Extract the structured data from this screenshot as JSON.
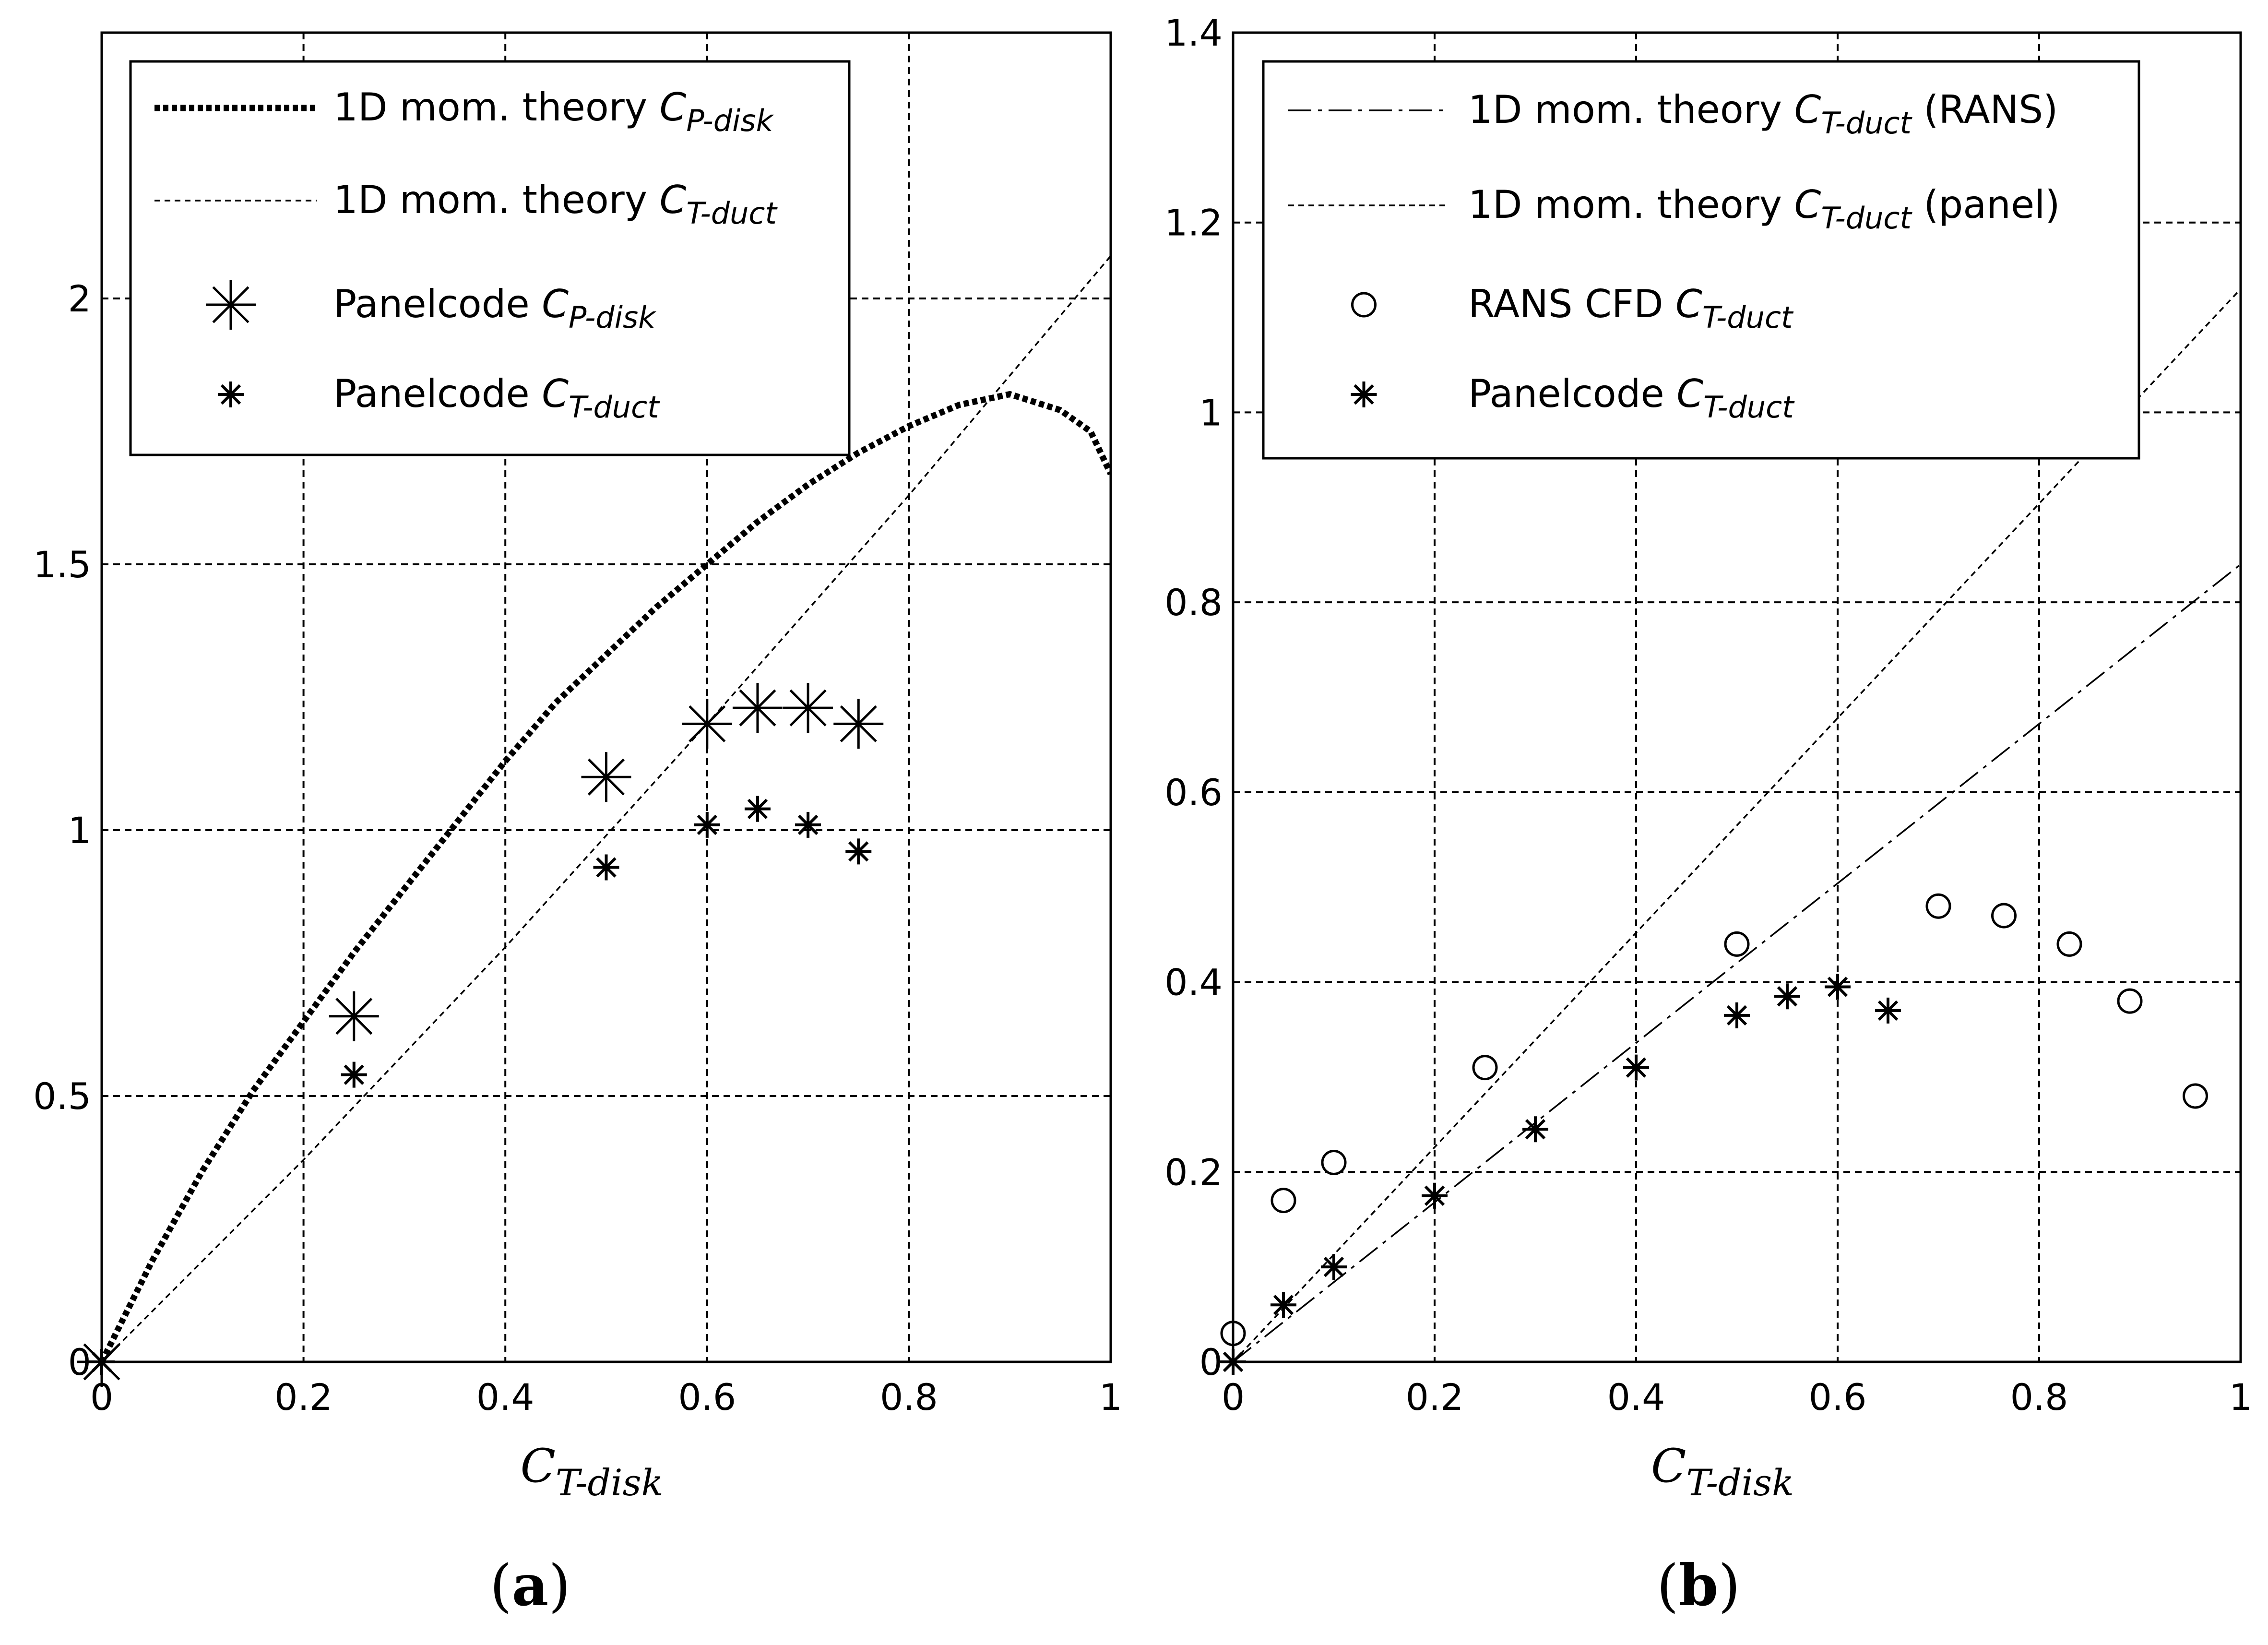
{
  "figure": {
    "panel_a_label": {
      "open": "(",
      "letter": "a",
      "close": ")"
    },
    "panel_b_label": {
      "open": "(",
      "letter": "b",
      "close": ")"
    }
  },
  "chart_data": [
    {
      "type": "line",
      "panel": "a",
      "xlabel": {
        "main": "C",
        "sub": "T-disk"
      },
      "xlim": [
        0,
        1
      ],
      "ylim": [
        0,
        2.5
      ],
      "xticks": [
        0,
        0.2,
        0.4,
        0.6,
        0.8,
        1
      ],
      "xtick_labels": [
        "0",
        "0.2",
        "0.4",
        "0.6",
        "0.8",
        "1"
      ],
      "yticks": [
        0,
        0.5,
        1,
        1.5,
        2
      ],
      "ytick_labels": [
        "0",
        "0.5",
        "1",
        "1.5",
        "2"
      ],
      "grid": true,
      "legend_position": "top-left",
      "series": [
        {
          "name": "1D mom. theory C_P-disk",
          "legend_prefix": "1D mom. theory ",
          "legend_main": "C",
          "legend_sub": "P-disk",
          "style": "thick-dotted",
          "x": [
            0,
            0.05,
            0.1,
            0.15,
            0.2,
            0.25,
            0.3,
            0.35,
            0.4,
            0.45,
            0.5,
            0.55,
            0.6,
            0.65,
            0.7,
            0.75,
            0.8,
            0.85,
            0.9,
            0.95,
            0.98,
            1.0
          ],
          "values": [
            0,
            0.19,
            0.36,
            0.51,
            0.64,
            0.77,
            0.89,
            1.01,
            1.13,
            1.24,
            1.33,
            1.42,
            1.5,
            1.58,
            1.65,
            1.71,
            1.76,
            1.8,
            1.82,
            1.79,
            1.75,
            1.67
          ]
        },
        {
          "name": "1D mom. theory C_T-duct",
          "legend_prefix": "1D mom. theory  ",
          "legend_main": "C",
          "legend_sub": "T-duct",
          "style": "thin-dashed",
          "x": [
            0,
            0.2,
            0.4,
            0.6,
            0.8,
            1.0
          ],
          "values": [
            0,
            0.38,
            0.78,
            1.2,
            1.63,
            2.08
          ]
        },
        {
          "name": "Panelcode C_P-disk",
          "legend_prefix": "Panelcode ",
          "legend_main": "C",
          "legend_sub": "P-disk",
          "style": "marker-asterisk-large",
          "x": [
            0,
            0.25,
            0.5,
            0.6,
            0.65,
            0.7,
            0.75
          ],
          "values": [
            0,
            0.65,
            1.1,
            1.2,
            1.23,
            1.23,
            1.2
          ]
        },
        {
          "name": "Panelcode C_T-duct",
          "legend_prefix": "Panelcode ",
          "legend_main": "C",
          "legend_sub": "T-duct",
          "style": "marker-asterisk-small",
          "x": [
            0,
            0.25,
            0.5,
            0.6,
            0.65,
            0.7,
            0.75
          ],
          "values": [
            0,
            0.54,
            0.93,
            1.01,
            1.04,
            1.01,
            0.96
          ]
        }
      ]
    },
    {
      "type": "line",
      "panel": "b",
      "xlabel": {
        "main": "C",
        "sub": "T-disk"
      },
      "xlim": [
        0,
        1
      ],
      "ylim": [
        0,
        1.4
      ],
      "xticks": [
        0,
        0.2,
        0.4,
        0.6,
        0.8,
        1
      ],
      "xtick_labels": [
        "0",
        "0.2",
        "0.4",
        "0.6",
        "0.8",
        "1"
      ],
      "yticks": [
        0,
        0.2,
        0.4,
        0.6,
        0.8,
        1,
        1.2,
        1.4
      ],
      "ytick_labels": [
        "0",
        "0.2",
        "0.4",
        "0.6",
        "0.8",
        "1",
        "1.2",
        "1.4"
      ],
      "grid": true,
      "legend_position": "top",
      "series": [
        {
          "name": "1D mom. theory C_T-duct (RANS)",
          "legend_prefix": "1D mom. theory ",
          "legend_main": "C",
          "legend_sub": "T-duct",
          "legend_suffix": " (RANS)",
          "style": "dash-dot",
          "x": [
            0,
            1.0
          ],
          "values": [
            0,
            0.84
          ]
        },
        {
          "name": "1D mom. theory C_T-duct (panel)",
          "legend_prefix": "1D mom. theory ",
          "legend_main": "C",
          "legend_sub": "T-duct",
          "legend_suffix": " (panel)",
          "style": "thin-dashed",
          "x": [
            0,
            1.0
          ],
          "values": [
            0,
            1.13
          ]
        },
        {
          "name": "RANS CFD C_T-duct",
          "legend_prefix": "RANS CFD ",
          "legend_main": "C",
          "legend_sub": "T-duct",
          "style": "marker-circle",
          "x": [
            0,
            0.05,
            0.1,
            0.25,
            0.5,
            0.7,
            0.765,
            0.83,
            0.89,
            0.955
          ],
          "values": [
            0.03,
            0.17,
            0.21,
            0.31,
            0.44,
            0.48,
            0.47,
            0.44,
            0.38,
            0.28
          ]
        },
        {
          "name": "Panelcode C_T-duct",
          "legend_prefix": "Panelcode ",
          "legend_main": "C",
          "legend_sub": "T-duct",
          "style": "marker-asterisk-small",
          "x": [
            0,
            0.05,
            0.1,
            0.2,
            0.3,
            0.4,
            0.5,
            0.55,
            0.6,
            0.65
          ],
          "values": [
            0,
            0.06,
            0.1,
            0.175,
            0.245,
            0.31,
            0.365,
            0.385,
            0.395,
            0.37
          ]
        }
      ]
    }
  ]
}
